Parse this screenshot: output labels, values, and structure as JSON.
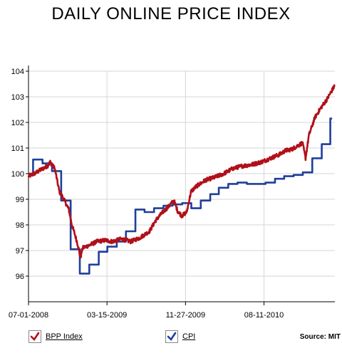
{
  "chart_data": {
    "type": "line",
    "title": "DAILY ONLINE PRICE INDEX",
    "ylim": [
      95,
      104
    ],
    "y_ticks": [
      96,
      97,
      98,
      99,
      100,
      101,
      102,
      103,
      104
    ],
    "x_range": [
      "2008-07-01",
      "2011-03-31"
    ],
    "x_ticks": [
      {
        "date": "2008-07-01",
        "label": "07-01-2008"
      },
      {
        "date": "2009-03-15",
        "label": "03-15-2009"
      },
      {
        "date": "2009-11-27",
        "label": "11-27-2009"
      },
      {
        "date": "2010-08-11",
        "label": "08-11-2010"
      }
    ],
    "grid": true,
    "legend_position": "bottom",
    "series": [
      {
        "name": "BPP Index",
        "color": "#b0101a",
        "style": "line",
        "points": [
          [
            "2008-07-01",
            99.9
          ],
          [
            "2008-07-20",
            100.0
          ],
          [
            "2008-08-10",
            100.15
          ],
          [
            "2008-09-01",
            100.3
          ],
          [
            "2008-09-10",
            100.45
          ],
          [
            "2008-09-25",
            100.2
          ],
          [
            "2008-10-10",
            99.3
          ],
          [
            "2008-10-25",
            99.0
          ],
          [
            "2008-11-10",
            98.6
          ],
          [
            "2008-11-20",
            98.0
          ],
          [
            "2008-11-28",
            97.7
          ],
          [
            "2008-12-10",
            97.2
          ],
          [
            "2008-12-18",
            96.7
          ],
          [
            "2008-12-25",
            97.1
          ],
          [
            "2009-01-15",
            97.2
          ],
          [
            "2009-02-10",
            97.35
          ],
          [
            "2009-03-10",
            97.4
          ],
          [
            "2009-04-01",
            97.35
          ],
          [
            "2009-05-01",
            97.45
          ],
          [
            "2009-06-01",
            97.35
          ],
          [
            "2009-07-01",
            97.5
          ],
          [
            "2009-08-01",
            97.75
          ],
          [
            "2009-08-20",
            98.15
          ],
          [
            "2009-09-10",
            98.45
          ],
          [
            "2009-10-01",
            98.7
          ],
          [
            "2009-10-20",
            98.95
          ],
          [
            "2009-11-01",
            98.55
          ],
          [
            "2009-11-15",
            98.35
          ],
          [
            "2009-12-01",
            98.5
          ],
          [
            "2009-12-15",
            99.3
          ],
          [
            "2010-01-01",
            99.5
          ],
          [
            "2010-02-01",
            99.75
          ],
          [
            "2010-03-01",
            99.85
          ],
          [
            "2010-04-01",
            100.0
          ],
          [
            "2010-05-01",
            100.2
          ],
          [
            "2010-06-01",
            100.3
          ],
          [
            "2010-07-01",
            100.35
          ],
          [
            "2010-08-01",
            100.45
          ],
          [
            "2010-09-01",
            100.6
          ],
          [
            "2010-10-01",
            100.75
          ],
          [
            "2010-10-20",
            100.9
          ],
          [
            "2010-11-10",
            100.95
          ],
          [
            "2010-11-30",
            101.1
          ],
          [
            "2010-12-15",
            101.2
          ],
          [
            "2010-12-25",
            100.6
          ],
          [
            "2011-01-05",
            101.5
          ],
          [
            "2011-01-25",
            102.2
          ],
          [
            "2011-02-15",
            102.6
          ],
          [
            "2011-03-05",
            102.9
          ],
          [
            "2011-03-31",
            103.45
          ]
        ]
      },
      {
        "name": "CPI",
        "color": "#1f3f98",
        "style": "step",
        "points": [
          [
            "2008-07-01",
            100.0
          ],
          [
            "2008-07-16",
            100.55
          ],
          [
            "2008-08-16",
            100.4
          ],
          [
            "2008-09-16",
            100.1
          ],
          [
            "2008-10-16",
            98.95
          ],
          [
            "2008-11-16",
            97.05
          ],
          [
            "2008-12-16",
            96.1
          ],
          [
            "2009-01-16",
            96.45
          ],
          [
            "2009-02-16",
            96.95
          ],
          [
            "2009-03-16",
            97.15
          ],
          [
            "2009-04-16",
            97.35
          ],
          [
            "2009-05-16",
            97.75
          ],
          [
            "2009-06-16",
            98.6
          ],
          [
            "2009-07-16",
            98.5
          ],
          [
            "2009-08-16",
            98.65
          ],
          [
            "2009-09-16",
            98.75
          ],
          [
            "2009-10-16",
            98.8
          ],
          [
            "2009-11-16",
            98.85
          ],
          [
            "2009-12-16",
            98.65
          ],
          [
            "2010-01-16",
            98.95
          ],
          [
            "2010-02-16",
            99.2
          ],
          [
            "2010-03-16",
            99.45
          ],
          [
            "2010-04-16",
            99.6
          ],
          [
            "2010-05-16",
            99.65
          ],
          [
            "2010-06-16",
            99.6
          ],
          [
            "2010-07-16",
            99.6
          ],
          [
            "2010-08-16",
            99.65
          ],
          [
            "2010-09-16",
            99.8
          ],
          [
            "2010-10-16",
            99.9
          ],
          [
            "2010-11-16",
            99.95
          ],
          [
            "2010-12-16",
            100.05
          ],
          [
            "2011-01-16",
            100.6
          ],
          [
            "2011-02-16",
            101.15
          ],
          [
            "2011-03-16",
            102.15
          ],
          [
            "2011-03-22",
            102.15
          ]
        ]
      }
    ]
  },
  "legend": {
    "items": [
      {
        "label": "BPP Index",
        "color": "#b0101a",
        "icon": "checkmark-icon"
      },
      {
        "label": "CPI",
        "color": "#1f3f98",
        "icon": "checkmark-icon"
      }
    ]
  },
  "source": "Source: MIT"
}
